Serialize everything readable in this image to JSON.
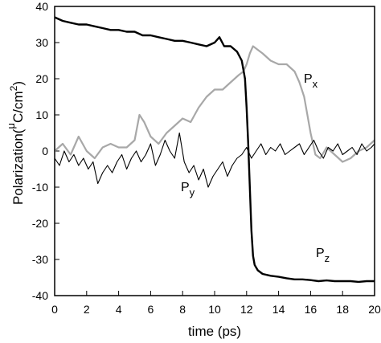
{
  "chart_data": {
    "type": "line",
    "xlabel": "time (ps)",
    "ylabel": "Polarization (μC/cm²)",
    "ylabel_parts": {
      "main": "Polarization",
      "mu": "μ",
      "unit": "C/cm",
      "sup": "2"
    },
    "xlim": [
      0,
      20
    ],
    "ylim": [
      -40,
      40
    ],
    "x_ticks": [
      "0",
      "2",
      "4",
      "6",
      "8",
      "10",
      "12",
      "14",
      "16",
      "18",
      "20"
    ],
    "y_ticks": [
      "-40",
      "-30",
      "-20",
      "-10",
      "0",
      "10",
      "20",
      "30",
      "40"
    ],
    "grid": false,
    "legend": "none (inline labels)",
    "series": [
      {
        "name": "Pz",
        "label_main": "P",
        "label_sub": "z",
        "color": "#000000",
        "stroke_width": 2.4,
        "x": [
          0,
          0.5,
          1,
          1.5,
          2,
          2.5,
          3,
          3.5,
          4,
          4.5,
          5,
          5.5,
          6,
          6.5,
          7,
          7.5,
          8,
          8.5,
          9,
          9.5,
          10,
          10.3,
          10.6,
          11,
          11.4,
          11.7,
          11.9,
          12.0,
          12.1,
          12.2,
          12.3,
          12.4,
          12.5,
          12.7,
          13,
          13.5,
          14,
          14.5,
          15,
          15.5,
          16,
          16.5,
          17,
          17.5,
          18,
          18.5,
          19,
          19.5,
          20
        ],
        "y": [
          37,
          36,
          35.5,
          35,
          35,
          34.5,
          34,
          33.5,
          33.5,
          33,
          33,
          32,
          32,
          31.5,
          31,
          30.5,
          30.5,
          30,
          29.5,
          29,
          30,
          31.5,
          29,
          29,
          27.5,
          25,
          20,
          12,
          2,
          -10,
          -22,
          -29,
          -31.5,
          -33,
          -34,
          -34.5,
          -34.8,
          -35.2,
          -35.5,
          -35.5,
          -35.7,
          -36,
          -35.8,
          -36,
          -36,
          -36,
          -36.2,
          -36,
          -36
        ]
      },
      {
        "name": "Px",
        "label_main": "P",
        "label_sub": "x",
        "color": "#a8a8a8",
        "stroke_width": 2.2,
        "x": [
          0,
          0.5,
          1,
          1.5,
          2,
          2.5,
          3,
          3.5,
          4,
          4.5,
          5,
          5.3,
          5.6,
          6,
          6.5,
          7,
          7.5,
          8,
          8.5,
          9,
          9.5,
          10,
          10.5,
          11,
          11.5,
          11.8,
          12,
          12.2,
          12.4,
          12.7,
          13,
          13.5,
          14,
          14.5,
          15,
          15.3,
          15.6,
          16,
          16.3,
          16.6,
          17,
          17.5,
          18,
          18.5,
          19,
          19.5,
          20
        ],
        "y": [
          0,
          2,
          -1,
          4,
          0,
          -2,
          1,
          2,
          1,
          1,
          3,
          10,
          8,
          4,
          2,
          5,
          7,
          9,
          8,
          12,
          15,
          17,
          17,
          19,
          21,
          22,
          24,
          27,
          29,
          28,
          27,
          25,
          24,
          24,
          22,
          19,
          15,
          5,
          -1,
          -2,
          1,
          -1,
          -3,
          -2,
          0,
          1,
          3
        ]
      },
      {
        "name": "Py",
        "label_main": "P",
        "label_sub": "y",
        "color": "#000000",
        "stroke_width": 1.1,
        "x": [
          0,
          0.3,
          0.6,
          0.9,
          1.2,
          1.5,
          1.8,
          2.1,
          2.4,
          2.7,
          3.0,
          3.3,
          3.6,
          3.9,
          4.2,
          4.5,
          4.8,
          5.1,
          5.4,
          5.7,
          6.0,
          6.3,
          6.6,
          6.9,
          7.2,
          7.5,
          7.8,
          8.1,
          8.4,
          8.7,
          9.0,
          9.3,
          9.6,
          9.9,
          10.2,
          10.5,
          10.8,
          11.1,
          11.4,
          11.7,
          12.0,
          12.3,
          12.6,
          12.9,
          13.2,
          13.5,
          13.8,
          14.1,
          14.4,
          14.7,
          15.0,
          15.3,
          15.6,
          15.9,
          16.2,
          16.5,
          16.8,
          17.1,
          17.4,
          17.7,
          18.0,
          18.3,
          18.6,
          18.9,
          19.2,
          19.5,
          19.8,
          20
        ],
        "y": [
          -2,
          -4,
          0,
          -3,
          -1,
          -4,
          -2,
          -5,
          -3,
          -9,
          -6,
          -4,
          -6,
          -3,
          -1,
          -5,
          -2,
          0,
          -3,
          -1,
          2,
          -4,
          -1,
          3,
          0,
          -2,
          5,
          -3,
          -6,
          -4,
          -8,
          -5,
          -10,
          -7,
          -5,
          -3,
          -7,
          -4,
          -2,
          -1,
          1,
          -2,
          0,
          2,
          -1,
          1,
          0,
          2,
          -1,
          0,
          1,
          2,
          -1,
          1,
          3,
          0,
          -2,
          1,
          0,
          2,
          -1,
          0,
          1,
          -1,
          2,
          0,
          1,
          2
        ]
      }
    ]
  }
}
